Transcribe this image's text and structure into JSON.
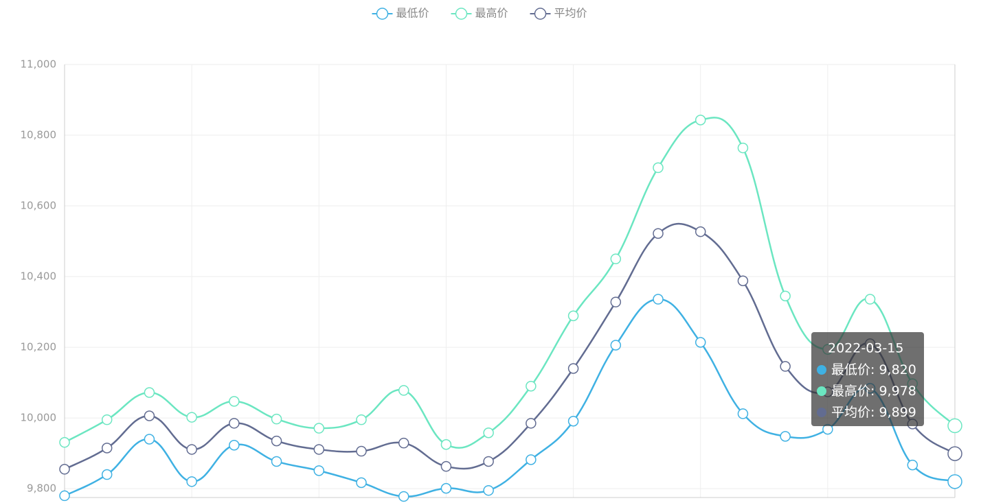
{
  "chart_data": {
    "type": "line",
    "categories": [
      null,
      null,
      null,
      null,
      null,
      null,
      null,
      null,
      null,
      null,
      null,
      null,
      null,
      null,
      null,
      null,
      null,
      null,
      null,
      null,
      null,
      "2022-03-15"
    ],
    "series": [
      {
        "name": "最低价",
        "color": "#3fb1e3",
        "values": [
          9780,
          9840,
          9940,
          9820,
          9923,
          9877,
          9851,
          9817,
          9778,
          9801,
          9795,
          9882,
          9991,
          10206,
          10336,
          10214,
          10012,
          9948,
          9968,
          10084,
          9867,
          9820
        ],
        "value_labels": [
          null,
          null,
          null,
          null,
          null,
          null,
          null,
          null,
          null,
          null,
          null,
          null,
          null,
          null,
          null,
          null,
          null,
          null,
          null,
          null,
          null,
          "9,820"
        ]
      },
      {
        "name": "最高价",
        "color": "#6be6c1",
        "values": [
          9931,
          9995,
          10072,
          10002,
          10047,
          9997,
          9971,
          9995,
          10078,
          9925,
          9958,
          10090,
          10289,
          10450,
          10708,
          10843,
          10764,
          10345,
          10194,
          10336,
          10097,
          9978
        ],
        "value_labels": [
          null,
          null,
          null,
          null,
          null,
          null,
          null,
          null,
          null,
          null,
          null,
          null,
          null,
          null,
          null,
          null,
          null,
          null,
          null,
          null,
          null,
          "9,978"
        ]
      },
      {
        "name": "平均价",
        "color": "#626c91",
        "values": [
          9855,
          9915,
          10006,
          9911,
          9985,
          9935,
          9911,
          9906,
          9929,
          9863,
          9877,
          9985,
          10140,
          10328,
          10522,
          10527,
          10388,
          10146,
          10074,
          10210,
          9983,
          9899
        ],
        "value_labels": [
          null,
          null,
          null,
          null,
          null,
          null,
          null,
          null,
          null,
          null,
          null,
          null,
          null,
          null,
          null,
          null,
          null,
          null,
          null,
          null,
          null,
          "9,899"
        ]
      }
    ],
    "ylim": [
      9775,
      11000
    ],
    "yticks": [
      {
        "value": 9800,
        "label": "9,800"
      },
      {
        "value": 10000,
        "label": "10,000"
      },
      {
        "value": 10200,
        "label": "10,200"
      },
      {
        "value": 10400,
        "label": "10,400"
      },
      {
        "value": 10600,
        "label": "10,600"
      },
      {
        "value": 10800,
        "label": "10,800"
      },
      {
        "value": 11000,
        "label": "11,000"
      }
    ],
    "grid": true,
    "smooth": true,
    "legend": "top",
    "tooltip_index": 21
  }
}
